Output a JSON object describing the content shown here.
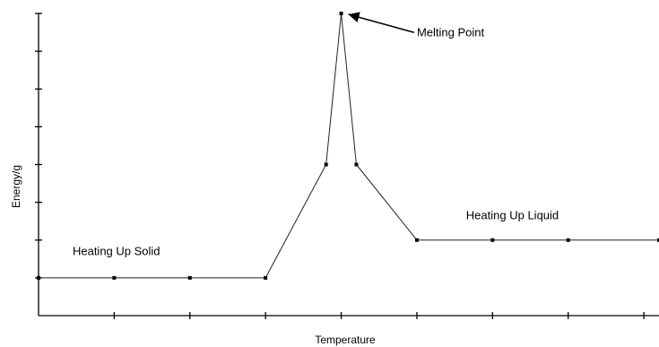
{
  "chart_data": {
    "type": "line",
    "title": "",
    "xlabel": "Temperature",
    "ylabel": "Energy/g",
    "xlim": [
      0,
      8.2
    ],
    "ylim": [
      0,
      8.0
    ],
    "grid": false,
    "legend": "none",
    "series": [
      {
        "x": [
          0,
          1,
          2,
          3,
          3.8,
          4,
          4.2,
          5,
          6,
          7,
          8.2
        ],
        "y": [
          1,
          1,
          1,
          1,
          4,
          8,
          4,
          2,
          2,
          2,
          2
        ]
      }
    ],
    "annotations": [
      {
        "text": "Heating Up Solid",
        "x": 0.45,
        "y": 1.6
      },
      {
        "text": "Heating Up Liquid",
        "x": 5.65,
        "y": 2.55
      },
      {
        "text": "Melting Point",
        "x": 5.0,
        "y": 7.4,
        "arrow_to": [
          4,
          8
        ]
      }
    ],
    "colors": {
      "line": "#222222",
      "markers": "#000000",
      "axes": "#000000"
    }
  }
}
